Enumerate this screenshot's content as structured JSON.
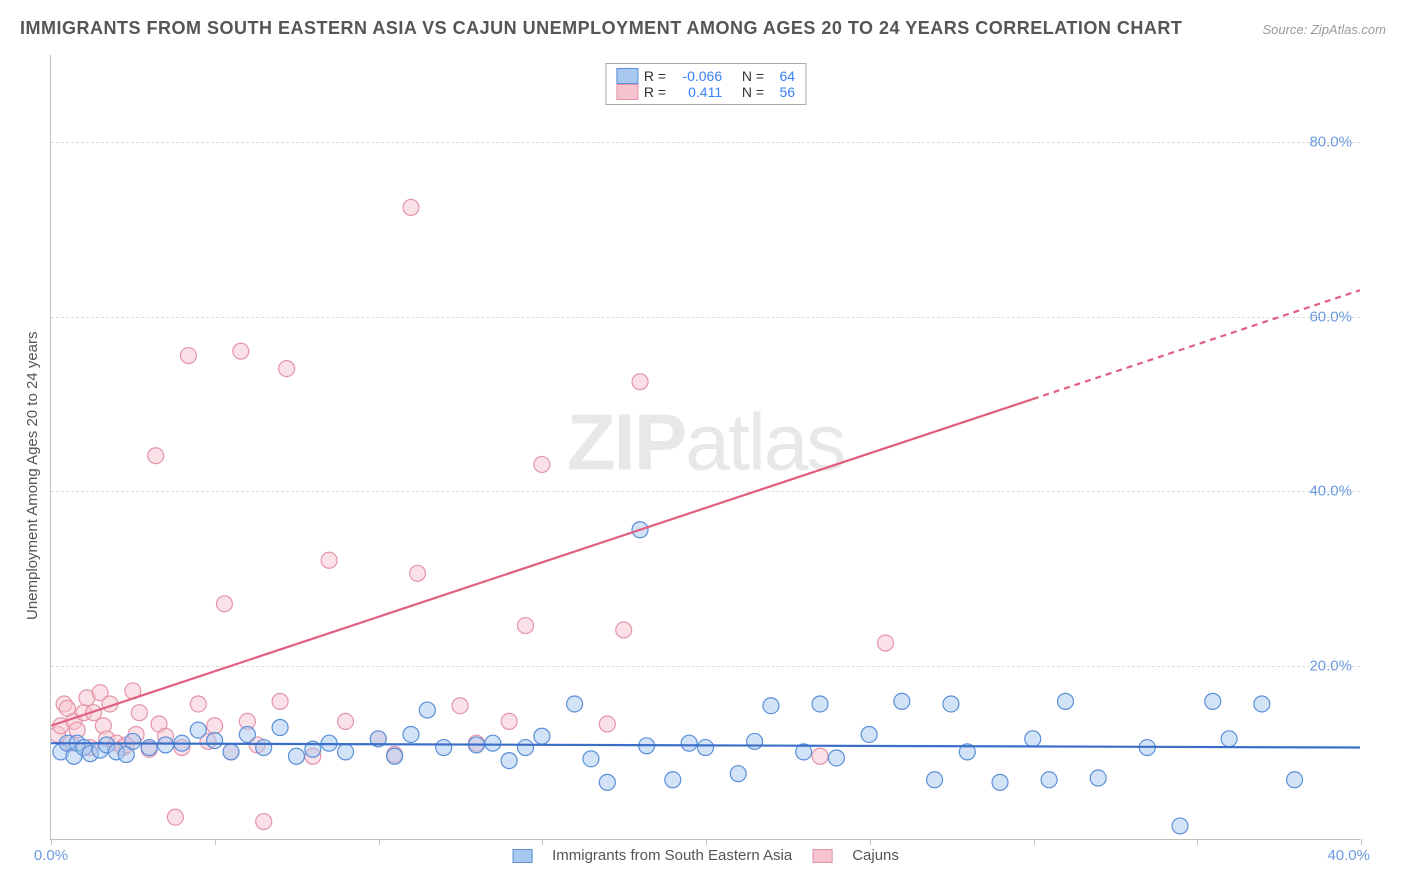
{
  "title": "IMMIGRANTS FROM SOUTH EASTERN ASIA VS CAJUN UNEMPLOYMENT AMONG AGES 20 TO 24 YEARS CORRELATION CHART",
  "source_label": "Source: ",
  "source_value": "ZipAtlas.com",
  "ylabel": "Unemployment Among Ages 20 to 24 years",
  "watermark_zip": "ZIP",
  "watermark_atlas": "atlas",
  "chart": {
    "type": "scatter",
    "xlim": [
      0,
      40
    ],
    "ylim": [
      0,
      90
    ],
    "ytick_values": [
      20,
      40,
      60,
      80
    ],
    "ytick_labels": [
      "20.0%",
      "40.0%",
      "60.0%",
      "80.0%"
    ],
    "xtick_positions": [
      0,
      5,
      10,
      15,
      20,
      25,
      30,
      35,
      40
    ],
    "xtick_label_min": "0.0%",
    "xtick_label_max": "40.0%",
    "background_color": "#ffffff",
    "grid_color": "#dddddd",
    "marker_radius": 8,
    "marker_opacity": 0.5,
    "series": {
      "blue": {
        "label": "Immigrants from South Eastern Asia",
        "fill_color": "#a8c8ef",
        "stroke_color": "#5a8fd8",
        "trend_color": "#3b6fc7",
        "r_label": "R =",
        "r_value": "-0.066",
        "n_label": "N =",
        "n_value": "64",
        "trend_y_start": 11.0,
        "trend_y_end": 10.5,
        "points": [
          [
            0.3,
            10
          ],
          [
            0.5,
            11
          ],
          [
            0.7,
            9.5
          ],
          [
            0.8,
            11
          ],
          [
            1.0,
            10.5
          ],
          [
            1.2,
            9.8
          ],
          [
            1.5,
            10.2
          ],
          [
            1.7,
            10.8
          ],
          [
            2.0,
            10
          ],
          [
            2.3,
            9.7
          ],
          [
            2.5,
            11.2
          ],
          [
            3.0,
            10.5
          ],
          [
            3.5,
            10.8
          ],
          [
            4.0,
            11
          ],
          [
            4.5,
            12.5
          ],
          [
            5.0,
            11.3
          ],
          [
            5.5,
            10
          ],
          [
            6.0,
            12
          ],
          [
            6.5,
            10.5
          ],
          [
            7.0,
            12.8
          ],
          [
            7.5,
            9.5
          ],
          [
            8.0,
            10.3
          ],
          [
            8.5,
            11
          ],
          [
            9.0,
            10
          ],
          [
            10.0,
            11.5
          ],
          [
            10.5,
            9.5
          ],
          [
            11.0,
            12
          ],
          [
            11.5,
            14.8
          ],
          [
            12.0,
            10.5
          ],
          [
            13.0,
            10.8
          ],
          [
            13.5,
            11
          ],
          [
            14.0,
            9
          ],
          [
            14.5,
            10.5
          ],
          [
            15.0,
            11.8
          ],
          [
            16.0,
            15.5
          ],
          [
            16.5,
            9.2
          ],
          [
            17.0,
            6.5
          ],
          [
            18.0,
            35.5
          ],
          [
            18.2,
            10.7
          ],
          [
            19.0,
            6.8
          ],
          [
            19.5,
            11
          ],
          [
            20.0,
            10.5
          ],
          [
            21.0,
            7.5
          ],
          [
            21.5,
            11.2
          ],
          [
            22.0,
            15.3
          ],
          [
            23.0,
            10
          ],
          [
            23.5,
            15.5
          ],
          [
            24.0,
            9.3
          ],
          [
            25.0,
            12
          ],
          [
            26.0,
            15.8
          ],
          [
            27.0,
            6.8
          ],
          [
            27.5,
            15.5
          ],
          [
            28.0,
            10
          ],
          [
            29.0,
            6.5
          ],
          [
            30.0,
            11.5
          ],
          [
            30.5,
            6.8
          ],
          [
            31.0,
            15.8
          ],
          [
            32.0,
            7
          ],
          [
            33.5,
            10.5
          ],
          [
            34.5,
            1.5
          ],
          [
            35.5,
            15.8
          ],
          [
            36.0,
            11.5
          ],
          [
            37.0,
            15.5
          ],
          [
            38.0,
            6.8
          ]
        ]
      },
      "pink": {
        "label": "Cajuns",
        "fill_color": "#f5c4cf",
        "stroke_color": "#e594a9",
        "trend_color": "#e0607f",
        "r_label": "R =",
        "r_value": "0.411",
        "n_label": "N =",
        "n_value": "56",
        "trend_y_start": 13.0,
        "trend_y_end": 63.0,
        "trend_dash_start": 30,
        "points": [
          [
            0.2,
            12
          ],
          [
            0.3,
            13
          ],
          [
            0.4,
            15.5
          ],
          [
            0.5,
            15
          ],
          [
            0.6,
            11
          ],
          [
            0.7,
            13.5
          ],
          [
            0.8,
            12.5
          ],
          [
            1.0,
            14.5
          ],
          [
            1.1,
            16.2
          ],
          [
            1.2,
            10.5
          ],
          [
            1.3,
            14.5
          ],
          [
            1.5,
            16.8
          ],
          [
            1.6,
            13
          ],
          [
            1.7,
            11.5
          ],
          [
            1.8,
            15.5
          ],
          [
            2.0,
            11
          ],
          [
            2.2,
            10.5
          ],
          [
            2.3,
            10.8
          ],
          [
            2.5,
            17
          ],
          [
            2.6,
            12
          ],
          [
            2.7,
            14.5
          ],
          [
            3.0,
            10.3
          ],
          [
            3.2,
            44.0
          ],
          [
            3.3,
            13.2
          ],
          [
            3.5,
            11.8
          ],
          [
            3.8,
            2.5
          ],
          [
            4.0,
            10.5
          ],
          [
            4.2,
            55.5
          ],
          [
            4.5,
            15.5
          ],
          [
            4.8,
            11.2
          ],
          [
            5.0,
            13
          ],
          [
            5.3,
            27.0
          ],
          [
            5.5,
            10
          ],
          [
            5.8,
            56.0
          ],
          [
            6.0,
            13.5
          ],
          [
            6.3,
            10.8
          ],
          [
            6.5,
            2.0
          ],
          [
            7.0,
            15.8
          ],
          [
            7.2,
            54.0
          ],
          [
            8.0,
            9.5
          ],
          [
            8.5,
            32.0
          ],
          [
            9.0,
            13.5
          ],
          [
            10.0,
            11.5
          ],
          [
            10.5,
            9.7
          ],
          [
            11.0,
            72.5
          ],
          [
            11.2,
            30.5
          ],
          [
            12.5,
            15.3
          ],
          [
            13.0,
            11
          ],
          [
            14.0,
            13.5
          ],
          [
            14.5,
            24.5
          ],
          [
            15.0,
            43.0
          ],
          [
            17.0,
            13.2
          ],
          [
            17.5,
            24.0
          ],
          [
            18.0,
            52.5
          ],
          [
            23.5,
            9.5
          ],
          [
            25.5,
            22.5
          ]
        ]
      }
    }
  }
}
